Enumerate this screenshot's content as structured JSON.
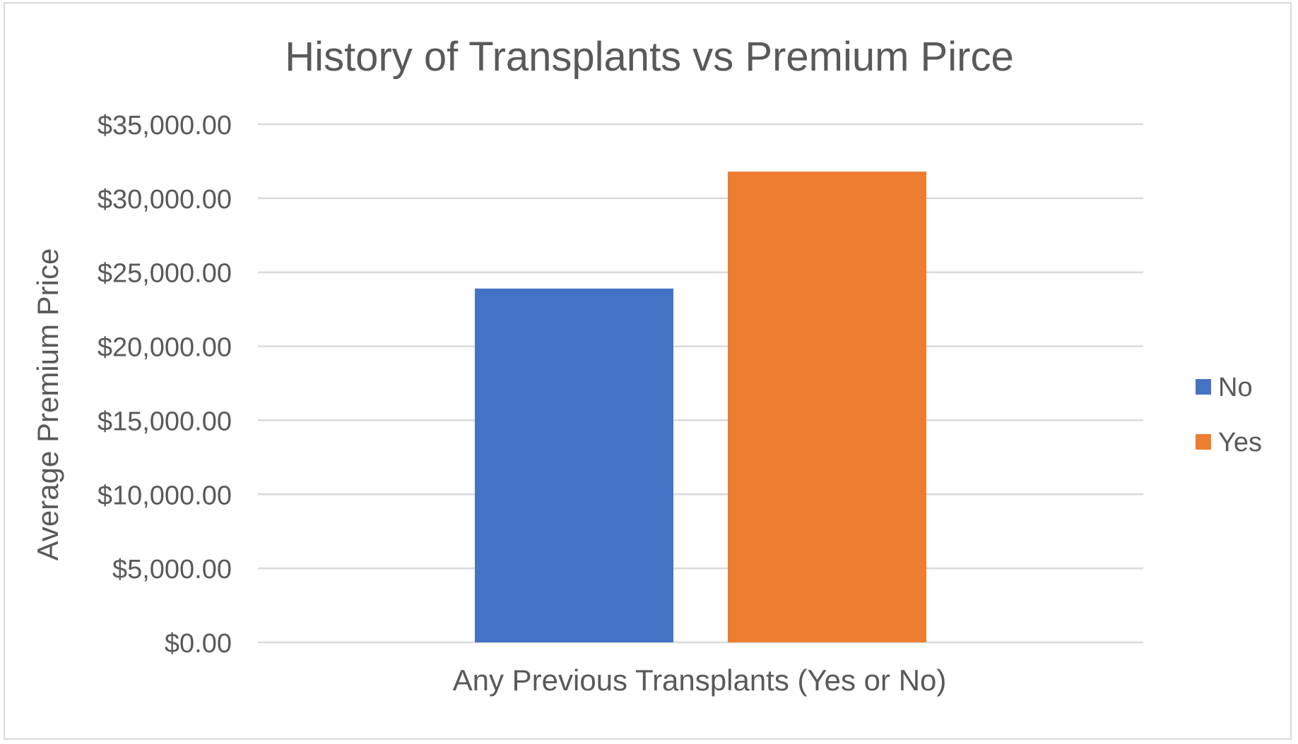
{
  "chart_data": {
    "type": "bar",
    "title": "History of Transplants vs Premium Pirce",
    "xlabel": "Any Previous Transplants (Yes or No)",
    "ylabel": "Average Premium Price",
    "ylim": [
      0,
      35000
    ],
    "yticks": [
      0,
      5000,
      10000,
      15000,
      20000,
      25000,
      30000,
      35000
    ],
    "ytick_labels": [
      "$0.00",
      "$5,000.00",
      "$10,000.00",
      "$15,000.00",
      "$20,000.00",
      "$25,000.00",
      "$30,000.00",
      "$35,000.00"
    ],
    "grid": true,
    "legend_position": "right",
    "series": [
      {
        "name": "No",
        "values": [
          23900
        ],
        "color": "#4472C4"
      },
      {
        "name": "Yes",
        "values": [
          31800
        ],
        "color": "#ED7D31"
      }
    ]
  }
}
